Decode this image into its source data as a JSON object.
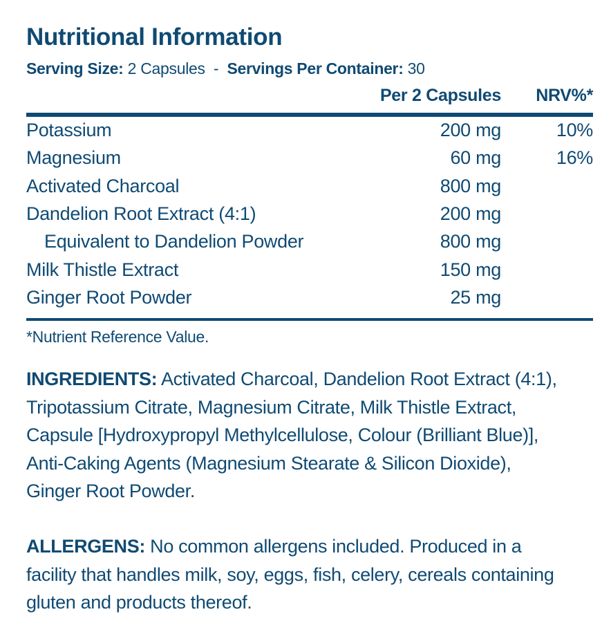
{
  "title": "Nutritional Information",
  "serving": {
    "size_label": "Serving Size:",
    "size_value": "2 Capsules",
    "separator": "-",
    "per_container_label": "Servings Per Container:",
    "per_container_value": "30"
  },
  "table": {
    "headers": {
      "amount": "Per 2 Capsules",
      "nrv": "NRV%*"
    },
    "rows": [
      {
        "name": "Potassium",
        "amount": "200 mg",
        "nrv": "10%"
      },
      {
        "name": "Magnesium",
        "amount": "60 mg",
        "nrv": "16%"
      },
      {
        "name": "Activated Charcoal",
        "amount": "800 mg",
        "nrv": ""
      },
      {
        "name": "Dandelion Root Extract (4:1)",
        "amount": "200 mg",
        "nrv": ""
      },
      {
        "name": "Equivalent to Dandelion Powder",
        "amount": "800 mg",
        "nrv": ""
      },
      {
        "name": "Milk Thistle Extract",
        "amount": "150 mg",
        "nrv": ""
      },
      {
        "name": "Ginger Root Powder",
        "amount": "25 mg",
        "nrv": ""
      }
    ]
  },
  "footnote": "*Nutrient Reference Value.",
  "ingredients": {
    "label": "INGREDIENTS:",
    "text": "Activated Charcoal, Dandelion Root Extract (4:1), Tripotassium Citrate, Magnesium Citrate, Milk Thistle Extract, Capsule [Hydroxypropyl Methylcellulose, Colour (Brilliant Blue)], Anti-Caking Agents (Magnesium Stearate & Silicon Dioxide), Ginger Root Powder."
  },
  "allergens": {
    "label": "ALLERGENS:",
    "text": "No common allergens included. Produced in a facility that handles milk, soy, eggs, fish, celery, cereals containing gluten and products thereof."
  },
  "colors": {
    "text": "#0f4a73",
    "background": "#ffffff"
  }
}
